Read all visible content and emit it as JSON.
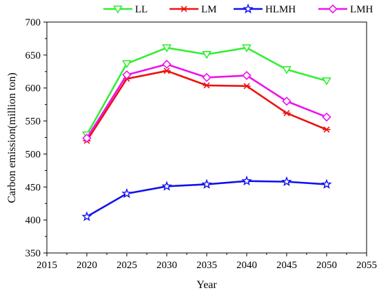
{
  "chart_data": {
    "type": "line",
    "title": "",
    "xlabel": "Year",
    "ylabel": "Carbon emission(million ton)",
    "xlim": [
      2015,
      2055
    ],
    "ylim": [
      350,
      700
    ],
    "xticks": [
      2015,
      2020,
      2025,
      2030,
      2035,
      2040,
      2045,
      2050,
      2055
    ],
    "yticks": [
      350,
      400,
      450,
      500,
      550,
      600,
      650,
      700
    ],
    "x": [
      2020,
      2025,
      2030,
      2035,
      2040,
      2045,
      2050
    ],
    "grid": false,
    "legend_position": "top",
    "series": [
      {
        "name": "LL",
        "color": "#33ee33",
        "marker": "triangle-down-icon",
        "values": [
          529,
          637,
          661,
          651,
          661,
          628,
          611
        ]
      },
      {
        "name": "LM",
        "color": "#ee1111",
        "marker": "asterisk-icon",
        "values": [
          520,
          614,
          626,
          604,
          603,
          562,
          537
        ]
      },
      {
        "name": "HLMH",
        "color": "#1111ee",
        "marker": "star-icon",
        "values": [
          405,
          440,
          451,
          454,
          459,
          458,
          454
        ]
      },
      {
        "name": "LMH",
        "color": "#ee11ee",
        "marker": "diamond-icon",
        "values": [
          524,
          620,
          636,
          616,
          619,
          580,
          556
        ]
      }
    ]
  }
}
